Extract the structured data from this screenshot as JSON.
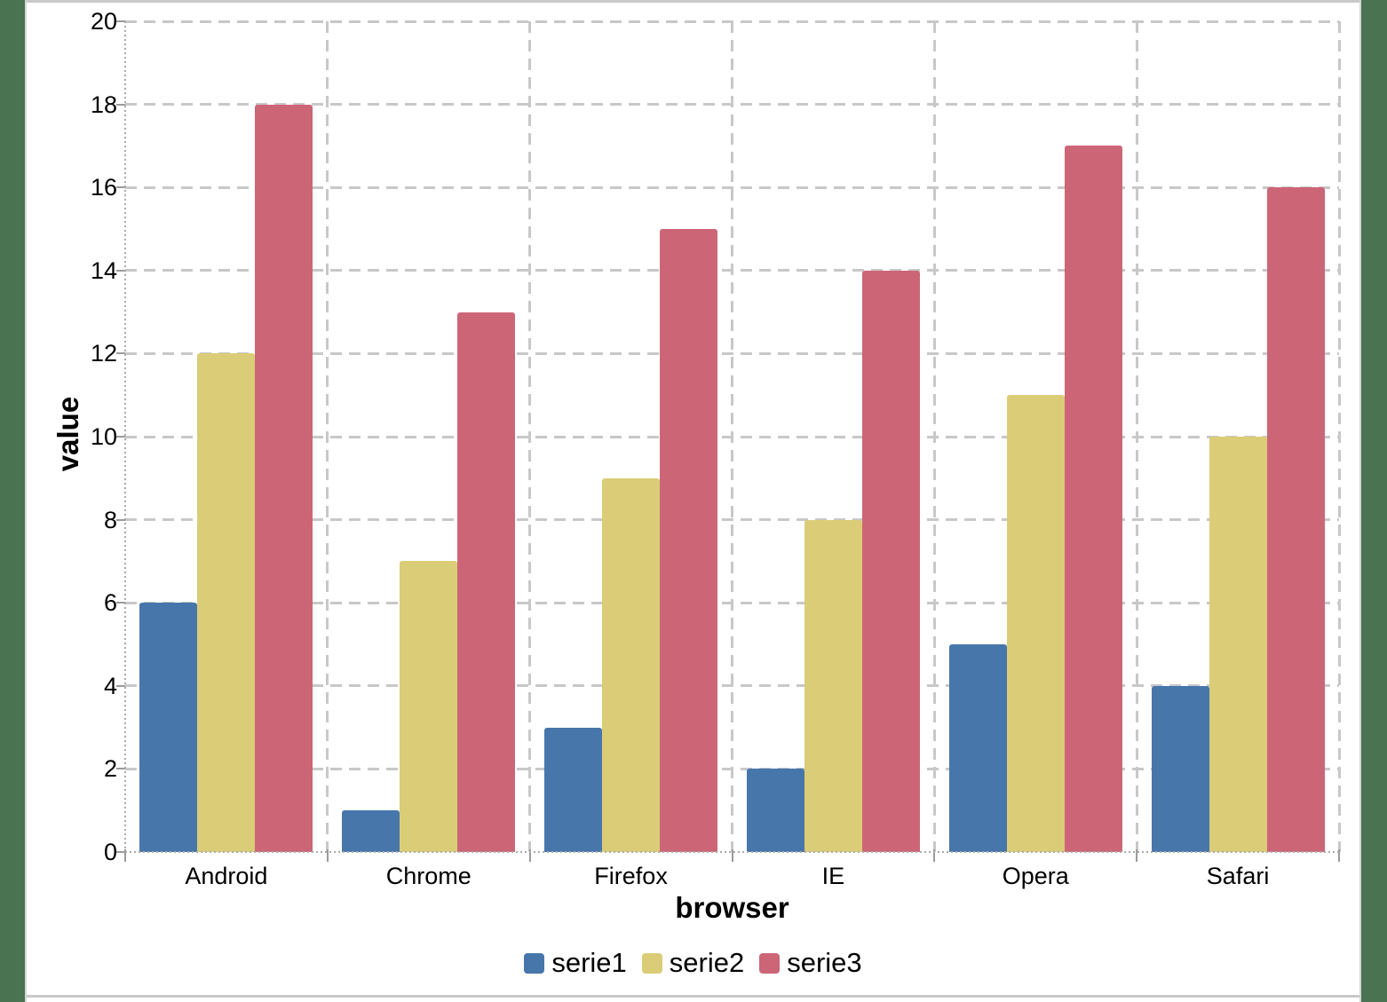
{
  "page": {
    "background_color": "#4A7351",
    "panel_background": "#FFFFFF",
    "panel_border_color": "#C9C9C9",
    "panel_side_border_color": "#D6D6D6"
  },
  "chart_data": {
    "type": "bar",
    "title": "",
    "xlabel": "browser",
    "ylabel": "value",
    "categories": [
      "Android",
      "Chrome",
      "Firefox",
      "IE",
      "Opera",
      "Safari"
    ],
    "series": [
      {
        "name": "serie1",
        "color": "#4776AB",
        "values": [
          6,
          1,
          3,
          2,
          5,
          4
        ]
      },
      {
        "name": "serie2",
        "color": "#DBCC77",
        "values": [
          12,
          7,
          9,
          8,
          11,
          10
        ]
      },
      {
        "name": "serie3",
        "color": "#CC6677",
        "values": [
          18,
          13,
          15,
          14,
          17,
          16
        ]
      }
    ],
    "ylim": [
      0,
      20
    ],
    "yticks": [
      0,
      2,
      4,
      6,
      8,
      10,
      12,
      14,
      16,
      18,
      20
    ],
    "grid": true,
    "gridline_style": "dashed",
    "gridline_color": "#C8C8C8",
    "axis_line_color": "#ABABAB",
    "tick_color": "#9B9B9B",
    "legend_position": "bottom-center",
    "legend_entries": [
      "serie1",
      "serie2",
      "serie3"
    ]
  }
}
